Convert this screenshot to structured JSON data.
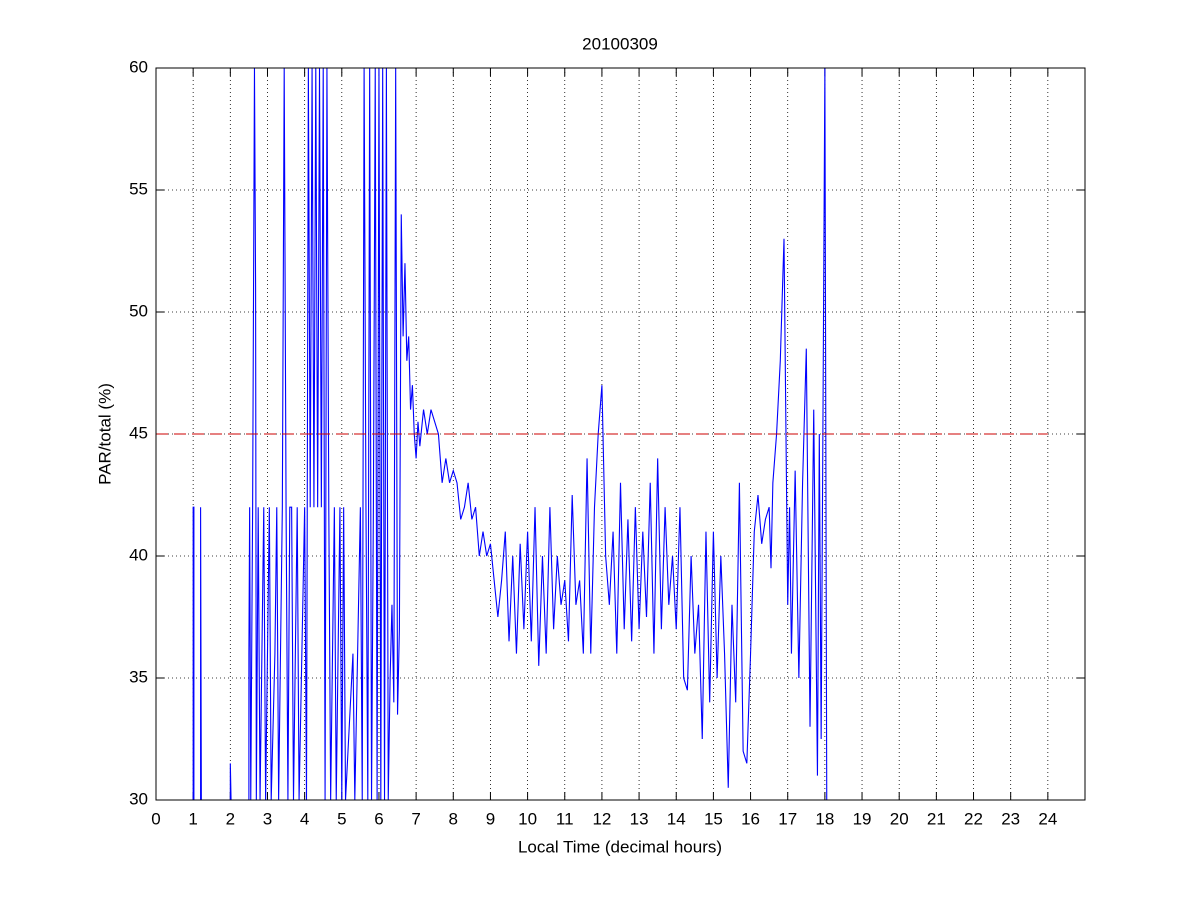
{
  "chart_data": {
    "type": "line",
    "title": "20100309",
    "xlabel": "Local Time (decimal hours)",
    "ylabel": "PAR/total (%)",
    "xlim": [
      0,
      25
    ],
    "ylim": [
      30,
      60
    ],
    "xticks": [
      0,
      1,
      2,
      3,
      4,
      5,
      6,
      7,
      8,
      9,
      10,
      11,
      12,
      13,
      14,
      15,
      16,
      17,
      18,
      19,
      20,
      21,
      22,
      23,
      24
    ],
    "yticks": [
      30,
      35,
      40,
      45,
      50,
      55,
      60
    ],
    "grid": true,
    "series": [
      {
        "color": "#0000ff",
        "x": [
          1.0,
          1.0,
          1.02,
          1.02,
          1.2,
          1.2,
          1.22,
          2.0,
          2.0,
          2.02,
          2.5,
          2.5,
          2.52,
          2.55,
          2.6,
          2.65,
          2.68,
          2.7,
          2.75,
          2.8,
          2.9,
          2.95,
          3.05,
          3.1,
          3.2,
          3.25,
          3.3,
          3.4,
          3.45,
          3.5,
          3.55,
          3.6,
          3.65,
          3.7,
          3.8,
          3.85,
          4.0,
          4.05,
          4.1,
          4.15,
          4.2,
          4.25,
          4.3,
          4.35,
          4.4,
          4.45,
          4.5,
          4.55,
          4.6,
          4.65,
          4.7,
          4.8,
          4.85,
          4.95,
          5.0,
          5.05,
          5.1,
          5.3,
          5.35,
          5.5,
          5.55,
          5.6,
          5.65,
          5.7,
          5.75,
          5.8,
          5.85,
          5.9,
          5.95,
          6.0,
          6.05,
          6.1,
          6.15,
          6.2,
          6.25,
          6.3,
          6.35,
          6.4,
          6.45,
          6.5,
          6.55,
          6.6,
          6.65,
          6.7,
          6.75,
          6.8,
          6.85,
          6.9,
          6.95,
          7.0,
          7.05,
          7.1,
          7.2,
          7.3,
          7.4,
          7.5,
          7.6,
          7.7,
          7.8,
          7.9,
          8.0,
          8.1,
          8.2,
          8.3,
          8.4,
          8.5,
          8.6,
          8.7,
          8.8,
          8.9,
          9.0,
          9.1,
          9.2,
          9.3,
          9.4,
          9.5,
          9.6,
          9.7,
          9.8,
          9.9,
          10.0,
          10.1,
          10.2,
          10.3,
          10.4,
          10.5,
          10.6,
          10.7,
          10.8,
          10.9,
          11.0,
          11.1,
          11.2,
          11.3,
          11.4,
          11.5,
          11.6,
          11.7,
          11.8,
          11.9,
          12.0,
          12.1,
          12.2,
          12.3,
          12.4,
          12.5,
          12.6,
          12.7,
          12.8,
          12.9,
          13.0,
          13.1,
          13.2,
          13.3,
          13.4,
          13.5,
          13.6,
          13.7,
          13.8,
          13.9,
          14.0,
          14.1,
          14.2,
          14.3,
          14.4,
          14.5,
          14.6,
          14.7,
          14.8,
          14.9,
          15.0,
          15.1,
          15.2,
          15.3,
          15.4,
          15.5,
          15.6,
          15.7,
          15.8,
          15.9,
          16.0,
          16.1,
          16.2,
          16.3,
          16.4,
          16.5,
          16.55,
          16.6,
          16.7,
          16.8,
          16.9,
          17.0,
          17.05,
          17.1,
          17.2,
          17.3,
          17.4,
          17.5,
          17.6,
          17.7,
          17.8,
          17.85,
          17.9,
          17.95,
          18.0,
          18.05
        ],
        "values": [
          30,
          42,
          42,
          30,
          30,
          42,
          30,
          30,
          31.5,
          30,
          30,
          36,
          42,
          30,
          42,
          60,
          51,
          30,
          42,
          30,
          42,
          30,
          42,
          30,
          36,
          42,
          30,
          42,
          60,
          42,
          30,
          42,
          42,
          30,
          42,
          30,
          42,
          30,
          60,
          42,
          60,
          42,
          60,
          42,
          60,
          42,
          60,
          30,
          60,
          42,
          30,
          42,
          30,
          42,
          30,
          42,
          30,
          36,
          30,
          42,
          30,
          60,
          42,
          30,
          60,
          30,
          42,
          60,
          30,
          60,
          30,
          60,
          30,
          60,
          30,
          35,
          38,
          34,
          60,
          33.5,
          37,
          54,
          49,
          52,
          48,
          49,
          46,
          47,
          45,
          44,
          45.5,
          44.5,
          46,
          45,
          46,
          45.5,
          45,
          43,
          44,
          43,
          43.5,
          43,
          41.5,
          42,
          43,
          41.5,
          42,
          40,
          41,
          40,
          40.5,
          39,
          37.5,
          39,
          41,
          36.5,
          40,
          36,
          40.5,
          37,
          41,
          36.5,
          42,
          35.5,
          40,
          36,
          42,
          37,
          40,
          38,
          39,
          36.5,
          42.5,
          38,
          39,
          36,
          44,
          36,
          42,
          45,
          47,
          40,
          38,
          41,
          36,
          43,
          37,
          41.5,
          36.5,
          42,
          37,
          41,
          37.5,
          43,
          36,
          44,
          37,
          42,
          38,
          40,
          37,
          42,
          35,
          34.5,
          40,
          36,
          38,
          32.5,
          41,
          34,
          41,
          35,
          40,
          36,
          30.5,
          38,
          34,
          43,
          32,
          31.5,
          36,
          41,
          42.5,
          40.5,
          41.5,
          42,
          39.5,
          43,
          45,
          48,
          53,
          38,
          42,
          36,
          43.5,
          35,
          43,
          48.5,
          33,
          46,
          31,
          45,
          32.5,
          46,
          60,
          30
        ]
      },
      {
        "color": "#cc0000",
        "line_style": "dashed",
        "x": [
          0,
          24
        ],
        "values": [
          45,
          45
        ]
      }
    ]
  }
}
